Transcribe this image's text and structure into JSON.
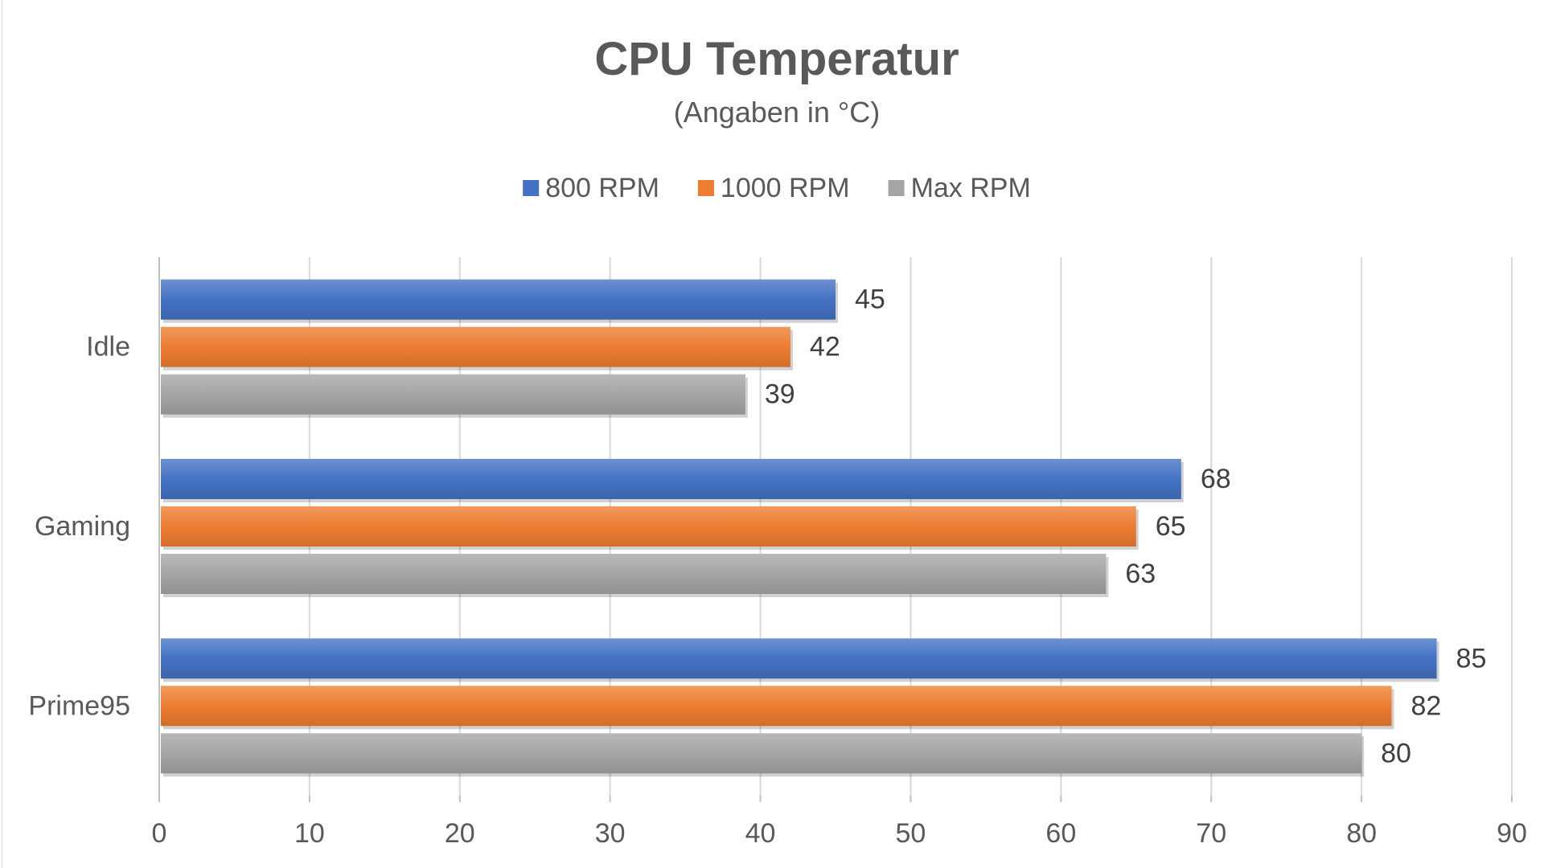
{
  "chart_data": {
    "type": "bar",
    "orientation": "horizontal",
    "title": "CPU Temperatur",
    "subtitle": "(Angaben in °C)",
    "xlabel": "",
    "ylabel": "",
    "categories": [
      "Idle",
      "Gaming",
      "Prime95"
    ],
    "series": [
      {
        "name": "800 RPM",
        "color": "#4472C4",
        "values": [
          45,
          68,
          85
        ]
      },
      {
        "name": "1000 RPM",
        "color": "#ED7D31",
        "values": [
          42,
          65,
          82
        ]
      },
      {
        "name": "Max RPM",
        "color": "#A5A5A5",
        "values": [
          39,
          63,
          80
        ]
      }
    ],
    "xlim": [
      0,
      90
    ],
    "xticks": [
      0,
      10,
      20,
      30,
      40,
      50,
      60,
      70,
      80,
      90
    ],
    "grid": true,
    "legend_position": "top"
  }
}
